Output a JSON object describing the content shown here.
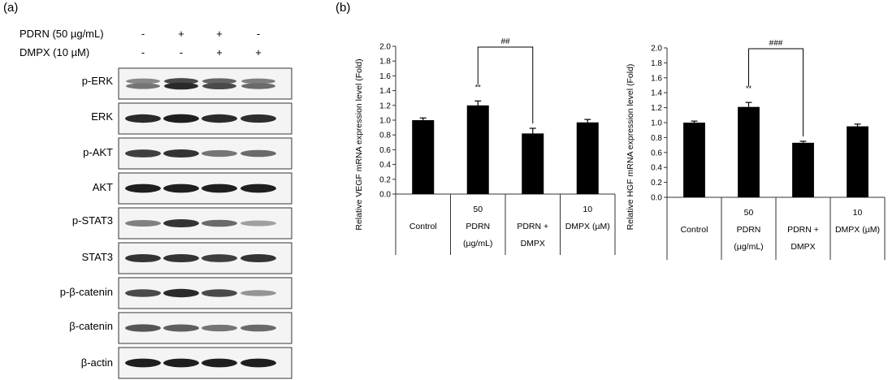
{
  "panel_a": {
    "label": "(a)",
    "conditions": [
      {
        "name": "PDRN (50 µg/mL)",
        "signs": [
          "-",
          "+",
          "+",
          "-"
        ]
      },
      {
        "name": "DMPX (10 µM)",
        "signs": [
          "-",
          "-",
          "+",
          "+"
        ]
      }
    ],
    "blots": [
      {
        "label": "p-ERK",
        "intensity": [
          0.55,
          0.9,
          0.75,
          0.6
        ],
        "band": "double"
      },
      {
        "label": "ERK",
        "intensity": [
          0.9,
          0.95,
          0.9,
          0.88
        ],
        "band": "single"
      },
      {
        "label": "p-AKT",
        "intensity": [
          0.8,
          0.85,
          0.55,
          0.6
        ],
        "band": "single"
      },
      {
        "label": "AKT",
        "intensity": [
          0.95,
          0.95,
          0.95,
          0.95
        ],
        "band": "single"
      },
      {
        "label": "p-STAT3",
        "intensity": [
          0.5,
          0.85,
          0.6,
          0.35
        ],
        "band": "single"
      },
      {
        "label": "STAT3",
        "intensity": [
          0.85,
          0.85,
          0.8,
          0.85
        ],
        "band": "single"
      },
      {
        "label": "p-β-catenin",
        "intensity": [
          0.75,
          0.9,
          0.75,
          0.4
        ],
        "band": "single"
      },
      {
        "label": "β-catenin",
        "intensity": [
          0.7,
          0.65,
          0.55,
          0.6
        ],
        "band": "single"
      },
      {
        "label": "β-actin",
        "intensity": [
          0.95,
          0.95,
          0.95,
          0.95
        ],
        "band": "single"
      }
    ]
  },
  "panel_b": {
    "label": "(b)"
  },
  "chart_data": [
    {
      "type": "bar",
      "ylabel": "Relative VEGF mRNA expression level (Fold)",
      "ylim": [
        0,
        2.0
      ],
      "yticks": [
        "0.0",
        "0.2",
        "0.4",
        "0.6",
        "0.8",
        "1.0",
        "1.2",
        "1.4",
        "1.6",
        "1.8",
        "2.0"
      ],
      "categories": [
        {
          "top": "",
          "lines": [
            "Control"
          ]
        },
        {
          "top": "50",
          "lines": [
            "PDRN",
            "(µg/mL)"
          ]
        },
        {
          "top": "",
          "lines": [
            "PDRN +",
            "DMPX"
          ]
        },
        {
          "top": "10",
          "lines": [
            "DMPX (µM)"
          ]
        }
      ],
      "values": [
        1.0,
        1.2,
        0.82,
        0.97
      ],
      "errors": [
        0.03,
        0.06,
        0.07,
        0.04
      ],
      "significance": [
        "",
        "**",
        "",
        ""
      ],
      "bracket": {
        "from": 1,
        "to": 2,
        "label": "##"
      }
    },
    {
      "type": "bar",
      "ylabel": "Relative HGF mRNA expression level (Fold)",
      "ylim": [
        0,
        2.0
      ],
      "yticks": [
        "0.0",
        "0.2",
        "0.4",
        "0.6",
        "0.8",
        "1.0",
        "1.2",
        "1.4",
        "1.6",
        "1.8",
        "2.0"
      ],
      "categories": [
        {
          "top": "",
          "lines": [
            "Control"
          ]
        },
        {
          "top": "50",
          "lines": [
            "PDRN",
            "(µg/mL)"
          ]
        },
        {
          "top": "",
          "lines": [
            "PDRN +",
            "DMPX"
          ]
        },
        {
          "top": "10",
          "lines": [
            "DMPX (µM)"
          ]
        }
      ],
      "values": [
        1.0,
        1.21,
        0.73,
        0.95
      ],
      "errors": [
        0.02,
        0.06,
        0.02,
        0.03
      ],
      "significance": [
        "",
        "**",
        "",
        ""
      ],
      "bracket": {
        "from": 1,
        "to": 2,
        "label": "###"
      }
    }
  ]
}
